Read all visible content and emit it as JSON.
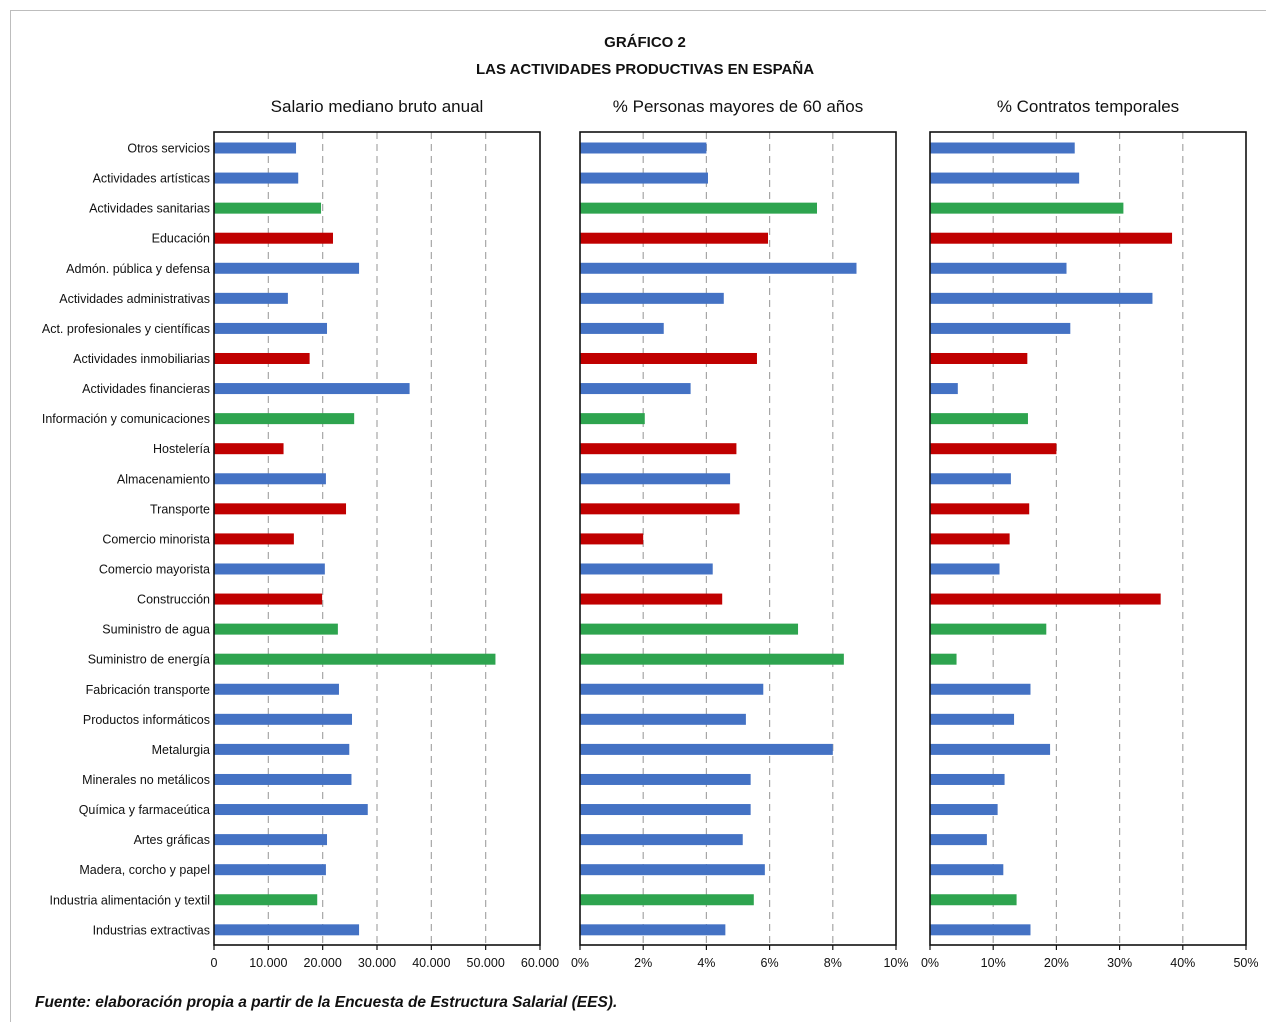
{
  "title": "GRÁFICO 2",
  "subtitle": "LAS ACTIVIDADES PRODUCTIVAS EN ESPAÑA",
  "source": "Fuente: elaboración propia a partir de la Encuesta de Estructura Salarial (EES).",
  "colors": {
    "blue": "#4472c4",
    "green": "#2ea44f",
    "red": "#c00000",
    "grid": "#a6a6a6"
  },
  "chart_data": {
    "type": "bar",
    "orientation": "horizontal",
    "grid": true,
    "categories": [
      "Otros servicios",
      "Actividades artísticas",
      "Actividades sanitarias",
      "Educación",
      "Admón. pública y defensa",
      "Actividades administrativas",
      "Act. profesionales y científicas",
      "Actividades  inmobiliarias",
      "Actividades financieras",
      "Información y comunicaciones",
      "Hostelería",
      "Almacenamiento",
      "Transporte",
      "Comercio minorista",
      "Comercio mayorista",
      "Construcción",
      "Suministro de agua",
      "Suministro de energía",
      "Fabricación transporte",
      "Productos informáticos",
      "Metalurgia",
      "Minerales no metálicos",
      "Química y farmaceútica",
      "Artes gráficas",
      "Madera, corcho y papel",
      "Industria alimentación y textil",
      "Industrias extractivas"
    ],
    "category_colors": [
      "blue",
      "blue",
      "green",
      "red",
      "blue",
      "blue",
      "blue",
      "red",
      "blue",
      "green",
      "red",
      "blue",
      "red",
      "red",
      "blue",
      "red",
      "green",
      "green",
      "blue",
      "blue",
      "blue",
      "blue",
      "blue",
      "blue",
      "blue",
      "green",
      "blue"
    ],
    "panels": [
      {
        "title": "Salario mediano bruto anual",
        "xlim": [
          0,
          60000
        ],
        "ticks": [
          0,
          10000,
          20000,
          30000,
          40000,
          50000,
          60000
        ],
        "tick_labels": [
          "0",
          "10.000",
          "20.000",
          "30.000",
          "40.000",
          "50.000",
          "60.000"
        ],
        "values": [
          15100,
          15500,
          19700,
          21900,
          26700,
          13600,
          20800,
          17600,
          36000,
          25800,
          12800,
          20600,
          24300,
          14700,
          20400,
          19900,
          22800,
          51800,
          23000,
          25400,
          24900,
          25300,
          28300,
          20800,
          20600,
          19000,
          26700
        ]
      },
      {
        "title": "% Personas mayores de 60 años",
        "xlim": [
          0,
          10
        ],
        "ticks": [
          0,
          2,
          4,
          6,
          8,
          10
        ],
        "tick_labels": [
          "0%",
          "2%",
          "4%",
          "6%",
          "8%",
          "10%"
        ],
        "values": [
          4.0,
          4.05,
          7.5,
          5.95,
          8.75,
          4.55,
          2.65,
          5.6,
          3.5,
          2.05,
          4.95,
          4.75,
          5.05,
          2.0,
          4.2,
          4.5,
          6.9,
          8.35,
          5.8,
          5.25,
          8.0,
          5.4,
          5.4,
          5.15,
          5.85,
          5.5,
          4.6
        ]
      },
      {
        "title": "% Contratos temporales",
        "xlim": [
          0,
          50
        ],
        "ticks": [
          0,
          10,
          20,
          30,
          40,
          50
        ],
        "tick_labels": [
          "0%",
          "10%",
          "20%",
          "30%",
          "40%",
          "50%"
        ],
        "values": [
          22.9,
          23.6,
          30.6,
          38.3,
          21.6,
          35.2,
          22.2,
          15.4,
          4.4,
          15.5,
          20.0,
          12.8,
          15.7,
          12.6,
          11.0,
          36.5,
          18.4,
          4.2,
          15.9,
          13.3,
          19.0,
          11.8,
          10.7,
          9.0,
          11.6,
          13.7,
          15.9
        ]
      }
    ]
  }
}
